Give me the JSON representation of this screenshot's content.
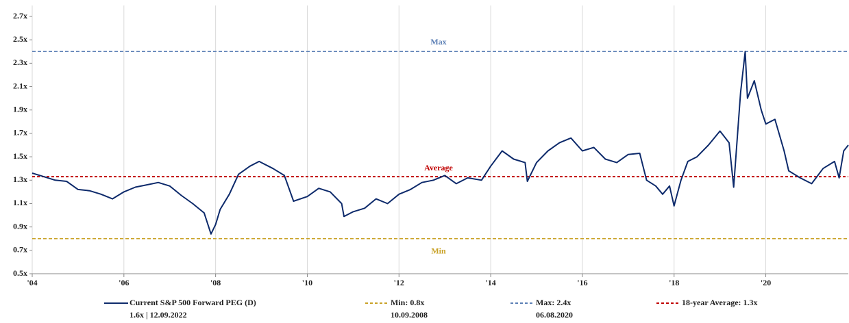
{
  "chart_data": {
    "type": "line",
    "x": [
      2004.0,
      2004.25,
      2004.5,
      2004.75,
      2005.0,
      2005.25,
      2005.5,
      2005.75,
      2006.0,
      2006.25,
      2006.5,
      2006.75,
      2007.0,
      2007.25,
      2007.5,
      2007.75,
      2007.9,
      2008.0,
      2008.1,
      2008.3,
      2008.5,
      2008.75,
      2008.95,
      2009.25,
      2009.5,
      2009.7,
      2010.0,
      2010.25,
      2010.5,
      2010.75,
      2010.8,
      2011.0,
      2011.25,
      2011.5,
      2011.75,
      2012.0,
      2012.25,
      2012.5,
      2012.75,
      2013.0,
      2013.25,
      2013.5,
      2013.8,
      2014.0,
      2014.25,
      2014.5,
      2014.75,
      2014.8,
      2015.0,
      2015.25,
      2015.5,
      2015.75,
      2016.0,
      2016.25,
      2016.5,
      2016.75,
      2017.0,
      2017.25,
      2017.4,
      2017.6,
      2017.75,
      2017.9,
      2018.0,
      2018.15,
      2018.3,
      2018.5,
      2018.75,
      2019.0,
      2019.2,
      2019.3,
      2019.45,
      2019.55,
      2019.6,
      2019.75,
      2019.9,
      2020.0,
      2020.2,
      2020.4,
      2020.5,
      2020.75,
      2021.0,
      2021.25,
      2021.5,
      2021.6,
      2021.7,
      2021.8
    ],
    "series": [
      {
        "name": "Current S&P 500 Forward PEG (D)",
        "note": "1.6x | 12.09.2022",
        "color": "#0d2a6b",
        "values": [
          1.36,
          1.33,
          1.3,
          1.29,
          1.22,
          1.21,
          1.18,
          1.14,
          1.2,
          1.24,
          1.26,
          1.28,
          1.25,
          1.17,
          1.1,
          1.02,
          0.84,
          0.92,
          1.05,
          1.18,
          1.35,
          1.42,
          1.46,
          1.4,
          1.34,
          1.12,
          1.16,
          1.23,
          1.2,
          1.1,
          0.99,
          1.03,
          1.06,
          1.14,
          1.1,
          1.18,
          1.22,
          1.28,
          1.3,
          1.34,
          1.27,
          1.32,
          1.3,
          1.42,
          1.55,
          1.48,
          1.45,
          1.29,
          1.45,
          1.55,
          1.62,
          1.66,
          1.55,
          1.58,
          1.48,
          1.45,
          1.52,
          1.53,
          1.3,
          1.25,
          1.18,
          1.25,
          1.08,
          1.3,
          1.46,
          1.5,
          1.6,
          1.72,
          1.62,
          1.24,
          2.05,
          2.4,
          2.0,
          2.15,
          1.9,
          1.78,
          1.82,
          1.55,
          1.38,
          1.32,
          1.27,
          1.4,
          1.46,
          1.32,
          1.55,
          1.6
        ]
      }
    ],
    "reference_lines": [
      {
        "name": "Min: 0.8x",
        "note": "10.09.2008",
        "label": "Min",
        "value": 0.8,
        "color": "#c9a227"
      },
      {
        "name": "Max: 2.4x",
        "note": "06.08.2020",
        "label": "Max",
        "value": 2.4,
        "color": "#5b7fb5"
      },
      {
        "name": "18-year Average: 1.3x",
        "label": "Average",
        "value": 1.33,
        "color": "#c00000"
      }
    ],
    "xlim": [
      2004,
      2021.8
    ],
    "xticks": [
      {
        "value": 2004,
        "label": "'04"
      },
      {
        "value": 2006,
        "label": "'06"
      },
      {
        "value": 2008,
        "label": "'08"
      },
      {
        "value": 2010,
        "label": "'10"
      },
      {
        "value": 2012,
        "label": "'12"
      },
      {
        "value": 2014,
        "label": "'14"
      },
      {
        "value": 2016,
        "label": "'16"
      },
      {
        "value": 2018,
        "label": "'18"
      },
      {
        "value": 2020,
        "label": "'20"
      }
    ],
    "ylim": [
      0.5,
      2.7
    ],
    "yticks": [
      {
        "value": 0.5,
        "label": "0.5x"
      },
      {
        "value": 0.7,
        "label": "0.7x"
      },
      {
        "value": 0.9,
        "label": "0.9x"
      },
      {
        "value": 1.1,
        "label": "1.1x"
      },
      {
        "value": 1.3,
        "label": "1.3x"
      },
      {
        "value": 1.5,
        "label": "1.5x"
      },
      {
        "value": 1.7,
        "label": "1.7x"
      },
      {
        "value": 1.9,
        "label": "1.9x"
      },
      {
        "value": 2.1,
        "label": "2.1x"
      },
      {
        "value": 2.3,
        "label": "2.3x"
      },
      {
        "value": 2.5,
        "label": "2.5x"
      },
      {
        "value": 2.7,
        "label": "2.7x"
      }
    ],
    "grid": "x"
  }
}
